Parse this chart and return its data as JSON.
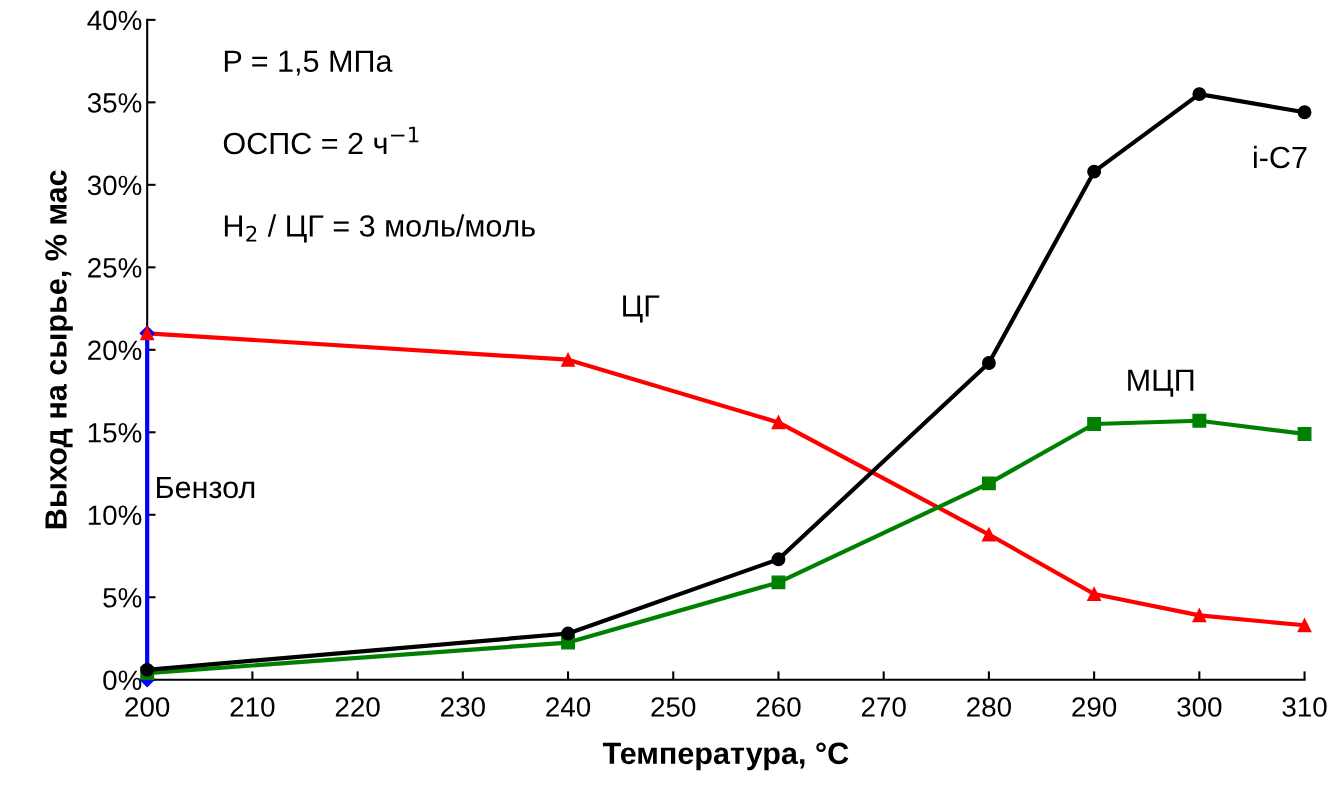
{
  "chart_data": {
    "type": "line",
    "xlabel": "Температура, °С",
    "ylabel": "Выход на сырье, % мас",
    "x": [
      200,
      240,
      260,
      280,
      290,
      300,
      310
    ],
    "series": [
      {
        "name": "i-C7",
        "color": "#000000",
        "marker": "circle",
        "values": [
          0.6,
          2.8,
          7.3,
          19.2,
          30.8,
          35.5,
          34.4
        ]
      },
      {
        "name": "МЦП",
        "color": "#008000",
        "marker": "square",
        "values": [
          0.4,
          2.25,
          5.9,
          11.9,
          15.5,
          15.7,
          14.9
        ]
      },
      {
        "name": "ЦГ",
        "color": "#ff0000",
        "marker": "triangle",
        "values": [
          21.0,
          19.4,
          15.6,
          8.8,
          5.2,
          3.9,
          3.3
        ]
      },
      {
        "name": "Бензол",
        "color": "#0000ff",
        "marker": "diamond",
        "x": [
          200,
          200
        ],
        "values": [
          0.0,
          21.0
        ]
      }
    ],
    "xlim": [
      200,
      310
    ],
    "xticks": [
      200,
      210,
      220,
      230,
      240,
      250,
      260,
      270,
      280,
      290,
      300,
      310
    ],
    "ylim": [
      0,
      40
    ],
    "yticks": [
      {
        "value": 0,
        "label": "0%"
      },
      {
        "value": 5,
        "label": "5%"
      },
      {
        "value": 10,
        "label": "10%"
      },
      {
        "value": 15,
        "label": "15%"
      },
      {
        "value": 20,
        "label": "20%"
      },
      {
        "value": 25,
        "label": "25%"
      },
      {
        "value": 30,
        "label": "30%"
      },
      {
        "value": 35,
        "label": "35%"
      },
      {
        "value": 40,
        "label": "40%"
      }
    ],
    "annotations": [
      "P = 1,5 МПа",
      "ОСПС = 2 ч$^{−1}$",
      "H$_{2}$ / ЦГ = 3 моль/моль"
    ],
    "grid": false,
    "legend": false,
    "line_style": "solid"
  }
}
